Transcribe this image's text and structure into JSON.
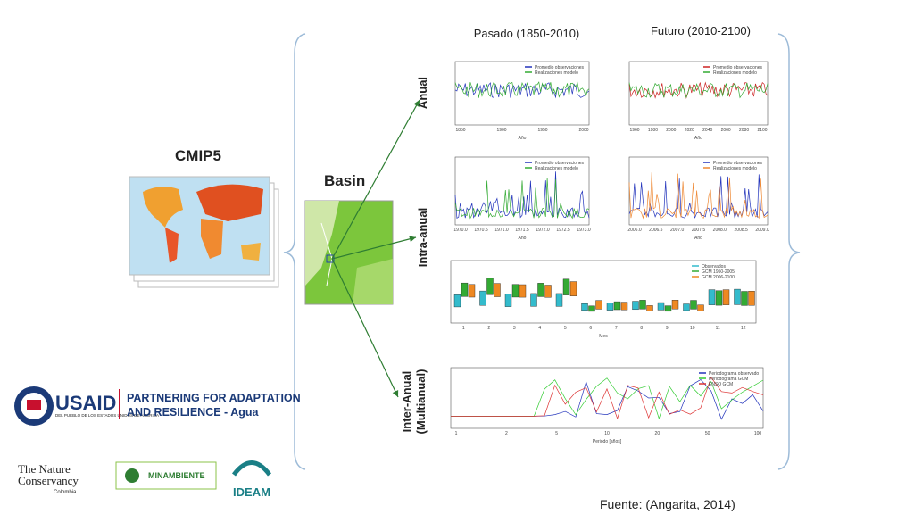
{
  "cmip5": {
    "title": "CMIP5"
  },
  "basin": {
    "title": "Basin"
  },
  "columns": [
    "Pasado (1850-2010)",
    "Futuro (2010-2100)"
  ],
  "rows": {
    "anual": "Anual",
    "intra": "Intra-anual",
    "inter": [
      "Inter-Anual",
      "(Multianual)"
    ]
  },
  "panels": {
    "anual_past": {
      "legend": [
        "Promedio observaciones",
        "Realizaciones modelo"
      ],
      "x_label": "Año",
      "x_ticks": [
        "1850",
        "1900",
        "1950",
        "2000"
      ]
    },
    "anual_future": {
      "legend": [
        "Promedio observaciones",
        "Realizaciones modelo"
      ],
      "x_label": "Año",
      "x_ticks": [
        "1960",
        "1980",
        "2000",
        "2020",
        "2040",
        "2060",
        "2080",
        "2100"
      ]
    },
    "intra_past": {
      "legend": [
        "Promedio observaciones",
        "Realizaciones modelo"
      ],
      "x_label": "Año",
      "x_ticks": [
        "1970.0",
        "1970.5",
        "1971.0",
        "1971.5",
        "1972.0",
        "1972.5",
        "1973.0"
      ]
    },
    "intra_future": {
      "legend": [
        "Promedio observaciones",
        "Realizaciones modelo"
      ],
      "x_label": "Año",
      "x_ticks": [
        "2006.0",
        "2006.5",
        "2007.0",
        "2007.5",
        "2008.0",
        "2008.5",
        "2009.0"
      ]
    },
    "boxplot": {
      "legend": [
        "Observados",
        "GCM 1950-2005",
        "GCM 2006-2100"
      ],
      "x_label": "Mes",
      "x_ticks": [
        "1",
        "2",
        "3",
        "4",
        "5",
        "6",
        "7",
        "8",
        "9",
        "10",
        "11",
        "12"
      ]
    },
    "inter": {
      "legend": [
        "Periodograma observado",
        "Periodograma GCM",
        "ENSO GCM"
      ],
      "x_label": "Periodo [años]",
      "x_ticks": [
        "1",
        "2",
        "5",
        "10",
        "20",
        "50",
        "100"
      ]
    }
  },
  "source": "Fuente: (Angarita, 2014)",
  "logos": {
    "usaid": "USAID",
    "usaid_sub": "DEL PUEBLO DE LOS ESTADOS UNIDOS DE AMÉRICA",
    "partnering": [
      "PARTNERING FOR ADAPTATION",
      "AND RESILIENCE - Agua"
    ],
    "tnc": [
      "The Nature",
      "Conservancy"
    ],
    "tnc_sub": "Colombia",
    "minambiente": "MINAMBIENTE",
    "ideam": "IDEAM"
  }
}
